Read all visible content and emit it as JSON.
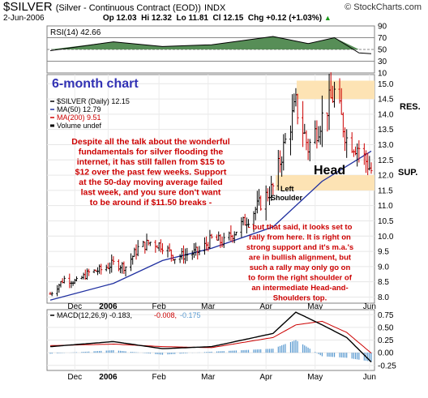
{
  "header": {
    "symbol": "$SILVER",
    "name": "(Silver - Continuous Contract (EOD))",
    "exchange": "INDX",
    "credit": "© StockCharts.com",
    "date": "2-Jun-2006",
    "op": "Op 12.03",
    "hi": "Hi 12.32",
    "lo": "Lo 11.81",
    "cl": "Cl 12.15",
    "chg": "Chg +0.12 (+1.03%)",
    "chg_arrow": "▲"
  },
  "rsi_panel": {
    "legend": "RSI(14) 42.66",
    "ticks": [
      "90",
      "70",
      "50",
      "30",
      "10"
    ]
  },
  "price_panel": {
    "big_label": "6-month chart",
    "legend": [
      "$SILVER (Daily) 12.15",
      "MA(50) 12.79",
      "MA(200) 9.51",
      "Volume undef"
    ],
    "left_annotation": [
      "Despite all the talk about the wonderful",
      "fundamentals for silver flooding the",
      "internet, it has still fallen from $15 to",
      "$12 over the past few weeks. Support",
      "at the 50-day moving average failed",
      "last week, and you sure don't want",
      "to be around if $11.50 breaks -"
    ],
    "right_annotation": [
      "- but that said, it looks set to",
      "rally from here. It is right on",
      "strong support and it's m.a.'s",
      "are in bullish alignment, but",
      "such a rally may only go on",
      "to form the right shoulder of",
      "an intermediate Head-and-",
      "Shoulders top."
    ],
    "head_label": "Head",
    "left_shoulder_label": [
      "Left",
      "Shoulder"
    ],
    "res_label": "RES.",
    "sup_label": "SUP.",
    "y_ticks": [
      "15.0",
      "14.5",
      "14.0",
      "13.5",
      "13.0",
      "12.5",
      "12.0",
      "11.5",
      "11.0",
      "10.5",
      "10.0",
      "9.5",
      "9.0",
      "8.5",
      "8.0"
    ],
    "x_ticks": [
      "Dec",
      "2006",
      "Feb",
      "Mar",
      "Apr",
      "May",
      "Jun"
    ]
  },
  "macd_panel": {
    "legend_name": "MACD(12,26,9)",
    "legend_macd": "-0.183",
    "legend_signal": "-0.008",
    "legend_hist": "-0.175",
    "y_ticks": [
      "0.75",
      "0.50",
      "0.25",
      "0.00",
      "-0.25"
    ],
    "x_ticks": [
      "Dec",
      "2006",
      "Feb",
      "Mar",
      "Apr",
      "May",
      "Jun"
    ]
  },
  "colors": {
    "price_up": "#000000",
    "price_down": "#cc0000",
    "ma50": "#1f2fa0",
    "ma200": "#cc0000",
    "annotation": "#cc0000",
    "band": "#fde3b4",
    "rsi_fill": "#3a7a3a",
    "macd_hist": "#5a9ad0",
    "big_label": "#3232b4"
  },
  "chart_data": {
    "type": "line",
    "title": "$SILVER (Silver - Continuous Contract (EOD))",
    "x_range": [
      "2005-12-01",
      "2006-06-02"
    ],
    "ylim": [
      7.8,
      15.3
    ],
    "grid": true,
    "legend_placement": "top-left",
    "series": [
      {
        "name": "$SILVER (Daily)",
        "x": [
          "2005-12-01",
          "2005-12-09",
          "2005-12-16",
          "2005-12-23",
          "2005-12-30",
          "2006-01-06",
          "2006-01-13",
          "2006-01-20",
          "2006-01-27",
          "2006-02-03",
          "2006-02-10",
          "2006-02-17",
          "2006-02-24",
          "2006-03-03",
          "2006-03-10",
          "2006-03-17",
          "2006-03-24",
          "2006-03-31",
          "2006-04-07",
          "2006-04-13",
          "2006-04-20",
          "2006-04-27",
          "2006-05-05",
          "2006-05-12",
          "2006-05-19",
          "2006-05-26",
          "2006-06-02"
        ],
        "values": [
          8.1,
          8.6,
          8.5,
          8.8,
          8.9,
          9.1,
          9.0,
          9.6,
          9.8,
          9.7,
          9.3,
          9.4,
          9.5,
          9.9,
          9.8,
          10.2,
          10.6,
          11.1,
          11.6,
          12.9,
          14.3,
          12.9,
          13.9,
          14.7,
          13.2,
          12.9,
          12.15
        ]
      },
      {
        "name": "MA(50)",
        "x": [
          "2005-12-01",
          "2006-01-06",
          "2006-02-03",
          "2006-03-03",
          "2006-04-07",
          "2006-05-05",
          "2006-06-02"
        ],
        "values": [
          7.9,
          8.45,
          9.2,
          9.6,
          10.3,
          11.8,
          12.79
        ]
      }
    ],
    "rsi": {
      "name": "RSI(14)",
      "last": 42.66,
      "ylim": [
        10,
        90
      ],
      "x": [
        "2005-12-01",
        "2006-01-06",
        "2006-02-03",
        "2006-03-03",
        "2006-04-07",
        "2006-04-27",
        "2006-05-12",
        "2006-05-26",
        "2006-06-02"
      ],
      "values": [
        48,
        63,
        55,
        58,
        72,
        60,
        70,
        44,
        42.66
      ]
    },
    "macd": {
      "name": "MACD(12,26,9)",
      "macd_last": -0.183,
      "signal_last": -0.008,
      "hist_last": -0.175,
      "ylim": [
        -0.35,
        0.85
      ],
      "x": [
        "2005-12-01",
        "2006-01-06",
        "2006-02-03",
        "2006-03-03",
        "2006-04-07",
        "2006-04-20",
        "2006-05-05",
        "2006-05-19",
        "2006-06-02"
      ],
      "macd_values": [
        0.12,
        0.22,
        0.08,
        0.12,
        0.38,
        0.8,
        0.55,
        0.3,
        -0.183
      ],
      "signal_values": [
        0.14,
        0.17,
        0.12,
        0.1,
        0.3,
        0.55,
        0.62,
        0.4,
        -0.008
      ]
    }
  }
}
